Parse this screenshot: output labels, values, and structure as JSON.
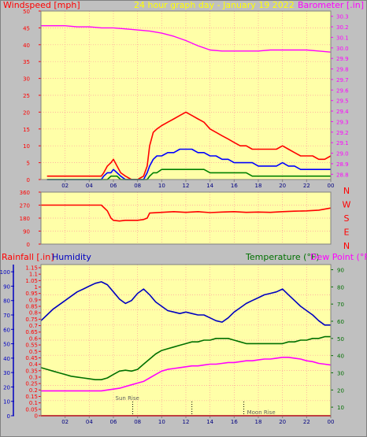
{
  "title": "24 hour graph day - January 19 2022",
  "colors": {
    "background": "#c0c0c0",
    "plot_bg": "#ffffa8",
    "grid": "#ff9c9c",
    "wind_speed": "#ff0000",
    "wind_avg": "#0000ff",
    "wind_min": "#008000",
    "barometer": "#ff00ff",
    "direction": "#ff0000",
    "humidity": "#0000c0",
    "temperature": "#007000",
    "dew_point": "#ff00ff",
    "rainfall": "#ff0000",
    "axis_wind": "#ff0000",
    "axis_baro": "#ff00ff",
    "axis_rain": "#ff0000",
    "axis_humidity": "#0000c0",
    "axis_temp": "#007000"
  },
  "chart_data": [
    {
      "id": "wind-barometer",
      "type": "line",
      "left_label": "Windspeed [mph]",
      "right_label": "Barometer [.in]",
      "x_ticks": [
        "02",
        "04",
        "06",
        "08",
        "10",
        "12",
        "14",
        "16",
        "18",
        "20",
        "22",
        "00"
      ],
      "left_ticks": [
        0,
        5,
        10,
        15,
        20,
        25,
        30,
        35,
        40,
        45,
        50
      ],
      "right_ticks": [
        28.8,
        28.9,
        29.0,
        29.1,
        29.2,
        29.3,
        29.4,
        29.5,
        29.6,
        29.7,
        29.8,
        29.9,
        30.0,
        30.1,
        30.2,
        30.3
      ],
      "ylim_left": [
        0,
        50
      ],
      "ylim_right": [
        28.75,
        30.35
      ],
      "series": [
        {
          "key": "gust",
          "x": [
            0.5,
            5.0,
            5.2,
            5.5,
            5.8,
            6.0,
            6.3,
            6.6,
            7.0,
            7.5,
            8.0,
            8.5,
            8.8,
            9.0,
            9.3,
            9.6,
            10.0,
            10.5,
            11.0,
            11.5,
            12.0,
            12.5,
            13.0,
            13.5,
            14.0,
            14.5,
            15.0,
            15.5,
            16.0,
            16.5,
            17.0,
            17.5,
            18.0,
            18.5,
            19.0,
            19.5,
            20.0,
            20.5,
            21.0,
            21.5,
            22.0,
            22.5,
            23.0,
            23.5,
            24.0
          ],
          "values": [
            1,
            1,
            2,
            4,
            5,
            6,
            4,
            2,
            1,
            0,
            0,
            1,
            4,
            10,
            14,
            15,
            16,
            17,
            18,
            19,
            20,
            19,
            18,
            17,
            15,
            14,
            13,
            12,
            11,
            10,
            10,
            9,
            9,
            9,
            9,
            9,
            10,
            9,
            8,
            7,
            7,
            7,
            6,
            6,
            7
          ]
        },
        {
          "key": "average",
          "x": [
            0.5,
            5.0,
            5.2,
            5.5,
            5.8,
            6.0,
            6.3,
            6.6,
            7.0,
            7.5,
            8.0,
            8.5,
            8.8,
            9.0,
            9.3,
            9.6,
            10.0,
            10.5,
            11.0,
            11.5,
            12.0,
            12.5,
            13.0,
            13.5,
            14.0,
            14.5,
            15.0,
            15.5,
            16.0,
            16.5,
            17.0,
            17.5,
            18.0,
            18.5,
            19.0,
            19.5,
            20.0,
            20.5,
            21.0,
            21.5,
            22.0,
            22.5,
            23.0,
            23.5,
            24.0
          ],
          "values": [
            0,
            0,
            1,
            2,
            2,
            3,
            2,
            1,
            0,
            0,
            0,
            0,
            2,
            4,
            6,
            7,
            7,
            8,
            8,
            9,
            9,
            9,
            8,
            8,
            7,
            7,
            6,
            6,
            5,
            5,
            5,
            5,
            4,
            4,
            4,
            4,
            5,
            4,
            4,
            3,
            3,
            3,
            3,
            3,
            3
          ]
        },
        {
          "key": "lull",
          "x": [
            0.5,
            5.0,
            5.2,
            5.5,
            5.8,
            6.0,
            6.3,
            6.6,
            7.0,
            7.5,
            8.0,
            8.5,
            8.8,
            9.0,
            9.3,
            9.6,
            10.0,
            10.5,
            11.0,
            11.5,
            12.0,
            12.5,
            13.0,
            13.5,
            14.0,
            14.5,
            15.0,
            15.5,
            16.0,
            16.5,
            17.0,
            17.5,
            18.0,
            18.5,
            19.0,
            19.5,
            20.0,
            20.5,
            21.0,
            21.5,
            22.0,
            22.5,
            23.0,
            23.5,
            24.0
          ],
          "values": [
            0,
            0,
            0,
            0,
            1,
            1,
            1,
            0,
            0,
            0,
            0,
            0,
            0,
            1,
            2,
            2,
            3,
            3,
            3,
            3,
            3,
            3,
            3,
            3,
            2,
            2,
            2,
            2,
            2,
            2,
            2,
            1,
            1,
            1,
            1,
            1,
            1,
            1,
            1,
            1,
            1,
            1,
            1,
            1,
            1
          ]
        },
        {
          "key": "barometer",
          "x": [
            0,
            1,
            2,
            3,
            4,
            5,
            6,
            7,
            8,
            9,
            10,
            11,
            12,
            13,
            14,
            15,
            16,
            17,
            18,
            19,
            20,
            21,
            22,
            23,
            24
          ],
          "values": [
            30.21,
            30.21,
            30.21,
            30.2,
            30.2,
            30.19,
            30.19,
            30.18,
            30.17,
            30.16,
            30.14,
            30.11,
            30.07,
            30.02,
            29.98,
            29.97,
            29.97,
            29.97,
            29.97,
            29.98,
            29.98,
            29.98,
            29.98,
            29.97,
            29.96
          ]
        }
      ]
    },
    {
      "id": "wind-direction",
      "type": "line",
      "left_ticks": [
        0,
        90,
        180,
        270,
        360
      ],
      "right_labels": [
        "N",
        "W",
        "S",
        "E",
        "N"
      ],
      "ylim": [
        0,
        360
      ],
      "x_ticks": [],
      "series": [
        {
          "key": "direction",
          "x": [
            0,
            1,
            2,
            3,
            4,
            5.0,
            5.5,
            5.8,
            6.0,
            6.5,
            7.0,
            7.5,
            8.0,
            8.5,
            8.8,
            9.0,
            10,
            11,
            12,
            13,
            14,
            15,
            16,
            17,
            18,
            19,
            20,
            21,
            22,
            23,
            24
          ],
          "values": [
            270,
            270,
            270,
            270,
            270,
            270,
            230,
            180,
            165,
            160,
            165,
            165,
            165,
            170,
            180,
            215,
            220,
            225,
            220,
            225,
            218,
            222,
            225,
            220,
            222,
            220,
            225,
            228,
            230,
            235,
            250
          ]
        }
      ]
    },
    {
      "id": "humidity-temp",
      "type": "line",
      "left_label_rain": "Rainfall [.in]",
      "left_label_hum": "Humidity",
      "right_label_temp": "Temperature (°F)",
      "right_label_dew": "Dew Point (°F)",
      "x_ticks": [
        "02",
        "04",
        "06",
        "08",
        "10",
        "12",
        "14",
        "16",
        "18",
        "20",
        "22",
        "00"
      ],
      "humidity_ticks": [
        0,
        10,
        20,
        30,
        40,
        50,
        60,
        70,
        80,
        90,
        100
      ],
      "rain_ticks": [
        "0",
        "0.05",
        "0.1",
        "0.15",
        "0.2",
        "0.25",
        "0.3",
        "0.35",
        "0.4",
        "0.45",
        "0.5",
        "0.55",
        "0.6",
        "0.65",
        "0.7",
        "0.75",
        "0.8",
        "0.85",
        "0.9",
        "0.95",
        "1",
        "1.05",
        "1.1",
        "1.15"
      ],
      "temp_ticks": [
        10,
        20,
        30,
        40,
        50,
        60,
        70,
        80,
        90
      ],
      "ylim_humidity": [
        0,
        105
      ],
      "ylim_temp": [
        5,
        93
      ],
      "annotations": [
        {
          "text": "Sun Rise",
          "x": 7.6
        },
        {
          "text": "",
          "x": 12.5
        },
        {
          "text": "Moon Rise",
          "x": 16.8
        }
      ],
      "series": [
        {
          "key": "humidity",
          "x": [
            0,
            0.5,
            1,
            1.5,
            2,
            2.5,
            3,
            3.5,
            4,
            4.5,
            5,
            5.5,
            6,
            6.5,
            7,
            7.5,
            8,
            8.5,
            9,
            9.5,
            10,
            10.5,
            11,
            11.5,
            12,
            12.5,
            13,
            13.5,
            14,
            14.5,
            15,
            15.5,
            16,
            16.5,
            17,
            17.5,
            18,
            18.5,
            19,
            19.5,
            20,
            20.5,
            21,
            21.5,
            22,
            22.5,
            23,
            23.5,
            24
          ],
          "values": [
            66,
            70,
            74,
            77,
            80,
            83,
            86,
            88,
            90,
            92,
            93,
            91,
            86,
            81,
            78,
            80,
            85,
            88,
            84,
            79,
            76,
            73,
            72,
            71,
            72,
            71,
            70,
            70,
            68,
            66,
            65,
            68,
            72,
            75,
            78,
            80,
            82,
            84,
            85,
            86,
            88,
            84,
            80,
            76,
            73,
            70,
            66,
            63,
            63
          ]
        },
        {
          "key": "temperature",
          "x": [
            0,
            0.5,
            1,
            1.5,
            2,
            2.5,
            3,
            3.5,
            4,
            4.5,
            5,
            5.5,
            6,
            6.5,
            7,
            7.5,
            8,
            8.5,
            9,
            9.5,
            10,
            10.5,
            11,
            11.5,
            12,
            12.5,
            13,
            13.5,
            14,
            14.5,
            15,
            15.5,
            16,
            16.5,
            17,
            17.5,
            18,
            18.5,
            19,
            19.5,
            20,
            20.5,
            21,
            21.5,
            22,
            22.5,
            23,
            23.5,
            24
          ],
          "values": [
            33,
            32,
            31,
            30,
            29,
            28,
            27.5,
            27,
            26.5,
            26,
            26,
            27,
            29,
            31,
            31.5,
            31,
            32,
            35,
            38,
            41,
            43,
            44,
            45,
            46,
            47,
            48,
            48,
            49,
            49,
            50,
            50,
            50,
            49,
            48,
            47,
            47,
            47,
            47,
            47,
            47,
            47,
            48,
            48,
            49,
            49,
            50,
            50,
            51,
            51
          ]
        },
        {
          "key": "dew_point",
          "x": [
            0,
            0.5,
            1,
            1.5,
            2,
            2.5,
            3,
            3.5,
            4,
            4.5,
            5,
            5.5,
            6,
            6.5,
            7,
            7.5,
            8,
            8.5,
            9,
            9.5,
            10,
            10.5,
            11,
            11.5,
            12,
            12.5,
            13,
            13.5,
            14,
            14.5,
            15,
            15.5,
            16,
            16.5,
            17,
            17.5,
            18,
            18.5,
            19,
            19.5,
            20,
            20.5,
            21,
            21.5,
            22,
            22.5,
            23,
            23.5,
            24
          ],
          "values": [
            19.5,
            19.5,
            19.5,
            19.5,
            19.5,
            19.5,
            19.5,
            19.5,
            19.5,
            19.5,
            19.5,
            20,
            20.5,
            21,
            22,
            23,
            24,
            25,
            27,
            29,
            31,
            32,
            32.5,
            33,
            33.5,
            34,
            34,
            34.5,
            35,
            35,
            35.5,
            36,
            36,
            36.5,
            37,
            37,
            37.5,
            38,
            38,
            38.5,
            39,
            39,
            38.5,
            38,
            37,
            36.5,
            35.5,
            35,
            34.5
          ]
        },
        {
          "key": "rainfall",
          "x": [
            0,
            24
          ],
          "values": [
            0,
            0
          ]
        }
      ]
    }
  ]
}
